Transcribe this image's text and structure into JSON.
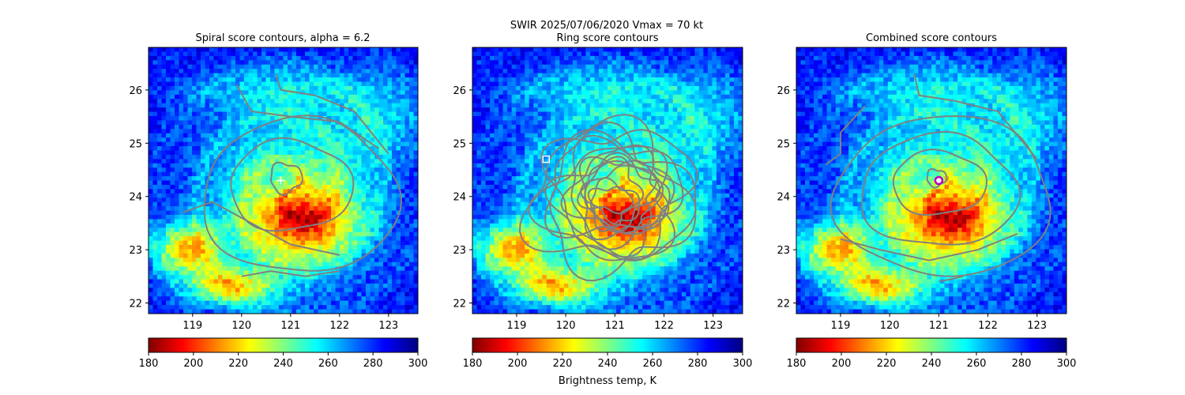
{
  "figure": {
    "suptitle_line1": "SWIR  2025/07/06/2020    Vmax = 70 kt"
  },
  "panels": [
    {
      "title": "Spiral score contours, alpha =  6.2"
    },
    {
      "title": "Ring score contours"
    },
    {
      "title": "Combined score contours"
    }
  ],
  "colorbar": {
    "label": "Brightness temp, K",
    "ticks": [
      180,
      200,
      220,
      240,
      260,
      280,
      300
    ],
    "colormap": "jet_r",
    "colors": [
      "#800000",
      "#ff0000",
      "#ff8000",
      "#ffff00",
      "#80ff80",
      "#00ffff",
      "#0080ff",
      "#0000ff",
      "#000080"
    ]
  },
  "chart_data": [
    {
      "type": "heatmap",
      "title": "Spiral score contours, alpha =  6.2",
      "xlim": [
        118.1,
        123.6
      ],
      "ylim": [
        21.8,
        26.8
      ],
      "xticks": [
        119,
        120,
        121,
        122,
        123
      ],
      "yticks": [
        22,
        23,
        24,
        25,
        26
      ],
      "value_range": [
        180,
        300
      ],
      "center_marker": {
        "lon": 120.8,
        "lat": 24.3,
        "symbol": "+"
      },
      "contour_color": "#808080"
    },
    {
      "type": "heatmap",
      "title": "Ring score contours",
      "xlim": [
        118.1,
        123.6
      ],
      "ylim": [
        21.8,
        26.8
      ],
      "xticks": [
        119,
        120,
        121,
        122,
        123
      ],
      "yticks": [
        22,
        23,
        24,
        25,
        26
      ],
      "value_range": [
        180,
        300
      ],
      "center_marker": {
        "lon": 119.6,
        "lat": 24.7,
        "symbol": "square"
      },
      "contour_color": "#808080"
    },
    {
      "type": "heatmap",
      "title": "Combined score contours",
      "xlim": [
        118.1,
        123.6
      ],
      "ylim": [
        21.8,
        26.8
      ],
      "xticks": [
        119,
        120,
        121,
        122,
        123
      ],
      "yticks": [
        22,
        23,
        24,
        25,
        26
      ],
      "value_range": [
        180,
        300
      ],
      "center_marker": {
        "lon": 121.0,
        "lat": 24.3,
        "symbol": "circle"
      },
      "contour_color": "#808080"
    }
  ]
}
